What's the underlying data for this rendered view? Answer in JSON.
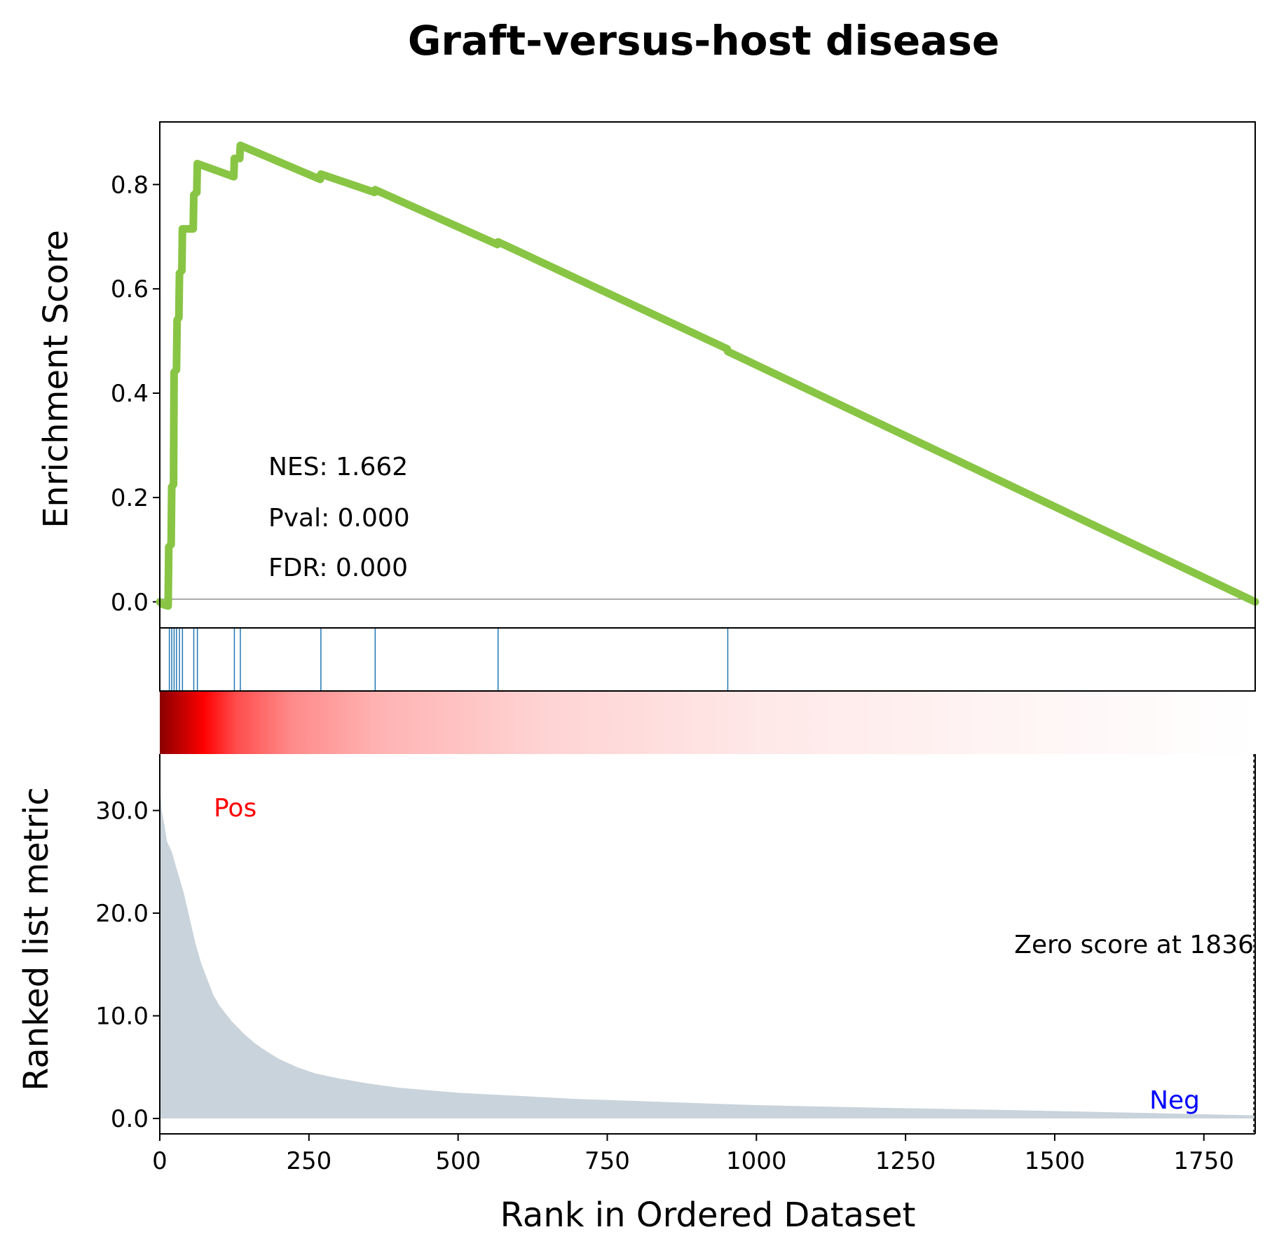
{
  "chart_data": {
    "type": "line",
    "title": "Graft-versus-host disease",
    "colors": {
      "es_line": "#88C544",
      "hits": "#1F77B4",
      "metric_fill": "#C9D3DB",
      "pos_label": "#FF0000",
      "neg_label": "#0000FF",
      "heatmap": [
        "#8B0000",
        "#FF0000",
        "#FFFFFF"
      ]
    },
    "enrichment_panel": {
      "ylabel": "Enrichment Score",
      "ylim": [
        -0.05,
        0.92
      ],
      "yticks": [
        0.0,
        0.2,
        0.4,
        0.6,
        0.8
      ],
      "ytick_labels": [
        "0.0",
        "0.2",
        "0.4",
        "0.6",
        "0.8"
      ],
      "baseline": 0.0,
      "series": {
        "x": [
          0,
          5,
          14,
          15,
          19,
          20,
          23,
          24,
          28,
          29,
          32,
          33,
          37,
          38,
          46,
          47,
          56,
          57,
          62,
          63,
          124,
          125,
          134,
          135,
          269,
          270,
          360,
          361,
          566,
          567,
          951,
          952,
          1836
        ],
        "y": [
          0.0,
          -0.005,
          -0.008,
          0.105,
          0.11,
          0.22,
          0.225,
          0.44,
          0.445,
          0.54,
          0.545,
          0.63,
          0.635,
          0.715,
          0.715,
          0.715,
          0.715,
          0.78,
          0.785,
          0.84,
          0.815,
          0.85,
          0.85,
          0.875,
          0.81,
          0.82,
          0.785,
          0.79,
          0.685,
          0.69,
          0.485,
          0.48,
          0.0
        ]
      },
      "annotations": {
        "nes": "NES: 1.662",
        "pval": "Pval: 0.000",
        "fdr": "FDR: 0.000"
      }
    },
    "hits_panel": {
      "positions": [
        16,
        20,
        24,
        28,
        33,
        38,
        57,
        63,
        125,
        135,
        270,
        361,
        567,
        952
      ]
    },
    "heatmap_panel": {
      "gradient": "dark red at rank 0 to white at rank 1836"
    },
    "metric_panel": {
      "ylabel": "Ranked list metric",
      "ylim": [
        -1.5,
        35.5
      ],
      "yticks": [
        0.0,
        10.0,
        20.0,
        30.0
      ],
      "ytick_labels": [
        "0.0",
        "10.0",
        "20.0",
        "30.0"
      ],
      "x": [
        0,
        3,
        8,
        12,
        20,
        30,
        40,
        50,
        60,
        70,
        80,
        90,
        100,
        120,
        140,
        160,
        180,
        200,
        230,
        260,
        300,
        350,
        400,
        500,
        600,
        700,
        800,
        900,
        1000,
        1200,
        1400,
        1600,
        1836
      ],
      "y": [
        32.5,
        30.0,
        28.5,
        27.0,
        26.0,
        24.0,
        22.0,
        19.5,
        17.0,
        15.0,
        13.5,
        12.0,
        11.0,
        9.5,
        8.3,
        7.3,
        6.5,
        5.8,
        5.0,
        4.4,
        3.9,
        3.4,
        3.0,
        2.5,
        2.2,
        1.9,
        1.7,
        1.5,
        1.3,
        1.05,
        0.85,
        0.6,
        0.3
      ],
      "pos_label": "Pos",
      "neg_label": "Neg",
      "zero_score": "Zero score at 1836",
      "zero_rank": 1836
    },
    "xlabel": "Rank in Ordered Dataset",
    "xlim": [
      0,
      1836
    ],
    "xticks": [
      0,
      250,
      500,
      750,
      1000,
      1250,
      1500,
      1750
    ],
    "xtick_labels": [
      "0",
      "250",
      "500",
      "750",
      "1000",
      "1250",
      "1500",
      "1750"
    ]
  }
}
